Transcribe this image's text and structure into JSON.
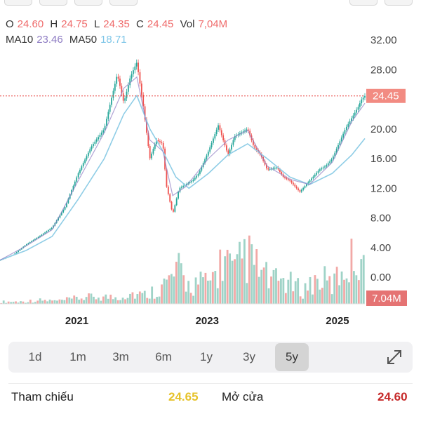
{
  "ohlc": {
    "o_label": "O",
    "o_value": "24.60",
    "h_label": "H",
    "h_value": "24.75",
    "l_label": "L",
    "l_value": "24.35",
    "c_label": "C",
    "c_value": "24.45",
    "vol_label": "Vol",
    "vol_value": "7,04M"
  },
  "ma": {
    "ma10_label": "MA10",
    "ma10_value": "23.46",
    "ma50_label": "MA50",
    "ma50_value": "18.71"
  },
  "colors": {
    "up": "#26a69a",
    "down": "#ef5350",
    "ma10": "#8e7cc3",
    "ma50": "#8fcde6",
    "price_line": "#e53935",
    "price_tag": "#f28b82",
    "vol_tag": "#e57373",
    "highlight": "#e6c229",
    "dark_red": "#c62828"
  },
  "chart_data": {
    "type": "candlestick",
    "y_ticks": [
      "32.00",
      "28.00",
      "24.00",
      "20.00",
      "16.00",
      "12.00",
      "8.00",
      "4.00",
      "0.00"
    ],
    "ylim": [
      0,
      32
    ],
    "x_ticks": [
      "2021",
      "2023",
      "2025"
    ],
    "last_price_label": "24.45",
    "last_price": 24.45,
    "volume_label": "7.04M",
    "price_series": {
      "x": [
        2020.0,
        2020.2,
        2020.4,
        2020.6,
        2020.8,
        2021.0,
        2021.2,
        2021.4,
        2021.6,
        2021.8,
        2021.9,
        2022.0,
        2022.1,
        2022.2,
        2022.3,
        2022.4,
        2022.5,
        2022.55,
        2022.65,
        2022.75,
        2022.85,
        2022.95,
        2023.05,
        2023.2,
        2023.35,
        2023.5,
        2023.6,
        2023.7,
        2023.8,
        2023.9,
        2024.0,
        2024.1,
        2024.25,
        2024.35,
        2024.45,
        2024.6,
        2024.75,
        2024.9,
        2025.0,
        2025.1,
        2025.2,
        2025.3,
        2025.4,
        2025.5,
        2025.55,
        2025.6
      ],
      "close": [
        2.3,
        3.0,
        4.4,
        5.5,
        6.7,
        9.5,
        14.0,
        17.6,
        20.0,
        27.4,
        23.5,
        27.0,
        29.0,
        23.0,
        16.0,
        18.5,
        18.0,
        12.5,
        8.5,
        12.0,
        12.5,
        13.0,
        14.0,
        17.0,
        20.5,
        16.5,
        19.0,
        19.5,
        20.0,
        17.5,
        16.5,
        14.5,
        14.8,
        13.5,
        13.0,
        11.5,
        13.0,
        14.5,
        15.0,
        16.0,
        18.0,
        20.0,
        21.5,
        23.0,
        24.0,
        24.45
      ]
    },
    "ma10": {
      "x": [
        2020.0,
        2020.4,
        2020.8,
        2021.2,
        2021.6,
        2021.9,
        2022.1,
        2022.3,
        2022.5,
        2022.65,
        2022.85,
        2023.2,
        2023.5,
        2023.8,
        2024.1,
        2024.45,
        2024.75,
        2025.1,
        2025.4,
        2025.6
      ],
      "values": [
        2.3,
        4.2,
        6.4,
        13.0,
        19.5,
        25.5,
        27.0,
        18.5,
        17.0,
        11.0,
        12.2,
        16.0,
        18.5,
        19.8,
        15.0,
        13.2,
        12.5,
        15.5,
        21.0,
        23.46
      ]
    },
    "ma50": {
      "x": [
        2020.0,
        2020.4,
        2020.8,
        2021.2,
        2021.6,
        2021.9,
        2022.1,
        2022.3,
        2022.5,
        2022.7,
        2022.9,
        2023.2,
        2023.5,
        2023.8,
        2024.1,
        2024.45,
        2024.75,
        2025.1,
        2025.4,
        2025.6
      ],
      "values": [
        2.3,
        3.6,
        5.5,
        10.5,
        16.0,
        22.0,
        24.5,
        20.0,
        17.0,
        13.5,
        12.0,
        14.0,
        16.5,
        18.0,
        16.0,
        13.5,
        12.5,
        14.0,
        16.5,
        18.71
      ]
    },
    "volume": {
      "x": [
        2020.3,
        2020.6,
        2020.9,
        2021.2,
        2021.5,
        2021.8,
        2022.0,
        2022.2,
        2022.35,
        2022.5,
        2022.62,
        2022.75,
        2022.9,
        2023.05,
        2023.2,
        2023.35,
        2023.45,
        2023.6,
        2023.75,
        2023.9,
        2024.05,
        2024.2,
        2024.35,
        2024.5,
        2024.65,
        2024.8,
        2024.95,
        2025.1,
        2025.25,
        2025.4,
        2025.5,
        2025.58
      ],
      "values": [
        0.3,
        0.5,
        0.4,
        0.8,
        1.0,
        0.9,
        1.5,
        1.2,
        1.8,
        2.5,
        3.5,
        4.5,
        2.5,
        3.0,
        2.8,
        5.0,
        6.5,
        4.0,
        7.0,
        5.5,
        4.0,
        3.0,
        3.5,
        2.5,
        2.0,
        3.0,
        3.5,
        2.5,
        5.0,
        6.0,
        7.5,
        7.04
      ]
    }
  },
  "period_tabs": [
    "1d",
    "1m",
    "3m",
    "6m",
    "1y",
    "3y",
    "5y"
  ],
  "active_tab": "5y",
  "info": {
    "reference_label": "Tham chiếu",
    "reference_value": "24.65",
    "open_label": "Mở cửa",
    "open_value": "24.60"
  }
}
